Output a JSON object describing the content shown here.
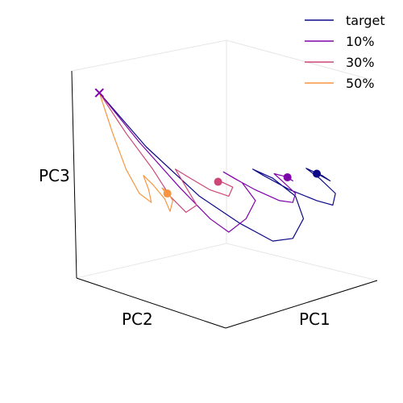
{
  "chart_data": {
    "type": "line",
    "subtype": "3d-trajectory",
    "title": "",
    "axes": {
      "x_label": "PC1",
      "y_label": "PC2",
      "z_label": "PC3"
    },
    "ticks": "none",
    "grid": "off",
    "legend": {
      "placement": "top-right",
      "entries": [
        "target",
        "10%",
        "30%",
        "50%"
      ]
    },
    "series": [
      {
        "name": "target",
        "color": "#0d0887",
        "start_marker": "x",
        "end_marker": "dot",
        "points": [
          [
            -0.95,
            0.9
          ],
          [
            -0.6,
            0.3
          ],
          [
            -0.2,
            -0.25
          ],
          [
            0.1,
            -0.55
          ],
          [
            0.35,
            -0.75
          ],
          [
            0.5,
            -0.72
          ],
          [
            0.58,
            -0.5
          ],
          [
            0.52,
            -0.25
          ],
          [
            0.35,
            -0.05
          ],
          [
            0.2,
            0.05
          ],
          [
            0.28,
            -0.02
          ],
          [
            0.48,
            -0.18
          ],
          [
            0.68,
            -0.3
          ],
          [
            0.8,
            -0.35
          ],
          [
            0.82,
            -0.22
          ],
          [
            0.7,
            -0.05
          ],
          [
            0.6,
            0.06
          ],
          [
            0.66,
            0.02
          ],
          [
            0.78,
            -0.08
          ],
          [
            0.72,
            -0.02
          ],
          [
            0.68,
            0.0
          ]
        ]
      },
      {
        "name": "10%",
        "color": "#7e03a8",
        "start_marker": "x",
        "end_marker": "dot",
        "points": [
          [
            -0.95,
            0.9
          ],
          [
            -0.65,
            0.35
          ],
          [
            -0.35,
            -0.15
          ],
          [
            -0.12,
            -0.5
          ],
          [
            0.02,
            -0.65
          ],
          [
            0.15,
            -0.5
          ],
          [
            0.22,
            -0.3
          ],
          [
            0.12,
            -0.1
          ],
          [
            -0.02,
            0.02
          ],
          [
            0.06,
            -0.05
          ],
          [
            0.22,
            -0.18
          ],
          [
            0.4,
            -0.3
          ],
          [
            0.5,
            -0.32
          ],
          [
            0.52,
            -0.22
          ],
          [
            0.42,
            -0.08
          ],
          [
            0.36,
            0.0
          ],
          [
            0.44,
            -0.03
          ],
          [
            0.5,
            -0.08
          ],
          [
            0.46,
            -0.04
          ]
        ]
      },
      {
        "name": "30%",
        "color": "#cc4778",
        "start_marker": "x",
        "end_marker": "dot",
        "points": [
          [
            -0.95,
            0.9
          ],
          [
            -0.75,
            0.45
          ],
          [
            -0.55,
            0.05
          ],
          [
            -0.42,
            -0.25
          ],
          [
            -0.3,
            -0.43
          ],
          [
            -0.22,
            -0.35
          ],
          [
            -0.3,
            -0.15
          ],
          [
            -0.38,
            0.05
          ],
          [
            -0.28,
            -0.04
          ],
          [
            -0.12,
            -0.18
          ],
          [
            0.02,
            -0.25
          ],
          [
            0.05,
            -0.15
          ],
          [
            -0.05,
            -0.08
          ],
          [
            -0.04,
            -0.1
          ],
          [
            -0.06,
            -0.09
          ]
        ]
      },
      {
        "name": "50%",
        "color": "#f89540",
        "start_marker": "x",
        "end_marker": "dot",
        "points": [
          [
            -0.95,
            0.9
          ],
          [
            -0.85,
            0.45
          ],
          [
            -0.75,
            0.05
          ],
          [
            -0.65,
            -0.22
          ],
          [
            -0.56,
            -0.32
          ],
          [
            -0.58,
            -0.18
          ],
          [
            -0.62,
            -0.02
          ],
          [
            -0.55,
            -0.12
          ],
          [
            -0.46,
            -0.28
          ],
          [
            -0.42,
            -0.42
          ],
          [
            -0.4,
            -0.3
          ],
          [
            -0.44,
            -0.2
          ],
          [
            -0.48,
            -0.16
          ],
          [
            -0.46,
            -0.2
          ],
          [
            -0.44,
            -0.22
          ]
        ]
      }
    ]
  }
}
